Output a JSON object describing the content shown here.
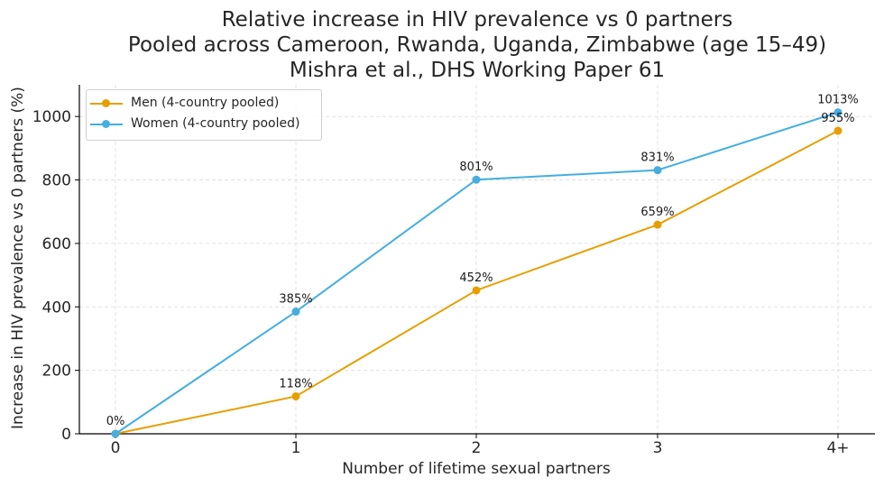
{
  "chart_data": {
    "type": "line",
    "title": [
      "Relative increase in HIV prevalence vs 0 partners",
      "Pooled across Cameroon, Rwanda, Uganda, Zimbabwe (age 15–49)",
      "Mishra et al., DHS Working Paper 61"
    ],
    "xlabel": "Number of lifetime sexual partners",
    "ylabel": "Increase in HIV prevalence vs 0 partners (%)",
    "categories": [
      "0",
      "1",
      "2",
      "3",
      "4+"
    ],
    "ylim": [
      0,
      1100
    ],
    "yticks": [
      0,
      200,
      400,
      600,
      800,
      1000
    ],
    "grid": true,
    "legend_position": "top-left",
    "series": [
      {
        "name": "Men (4-country pooled)",
        "color": "#E69F00",
        "values": [
          0,
          118,
          452,
          659,
          955
        ],
        "labels": [
          "0%",
          "118%",
          "452%",
          "659%",
          "955%"
        ]
      },
      {
        "name": "Women (4-country pooled)",
        "color": "#45AEE0",
        "values": [
          0,
          385,
          801,
          831,
          1013
        ],
        "labels": [
          "",
          "385%",
          "801%",
          "831%",
          "1013%"
        ]
      }
    ]
  }
}
